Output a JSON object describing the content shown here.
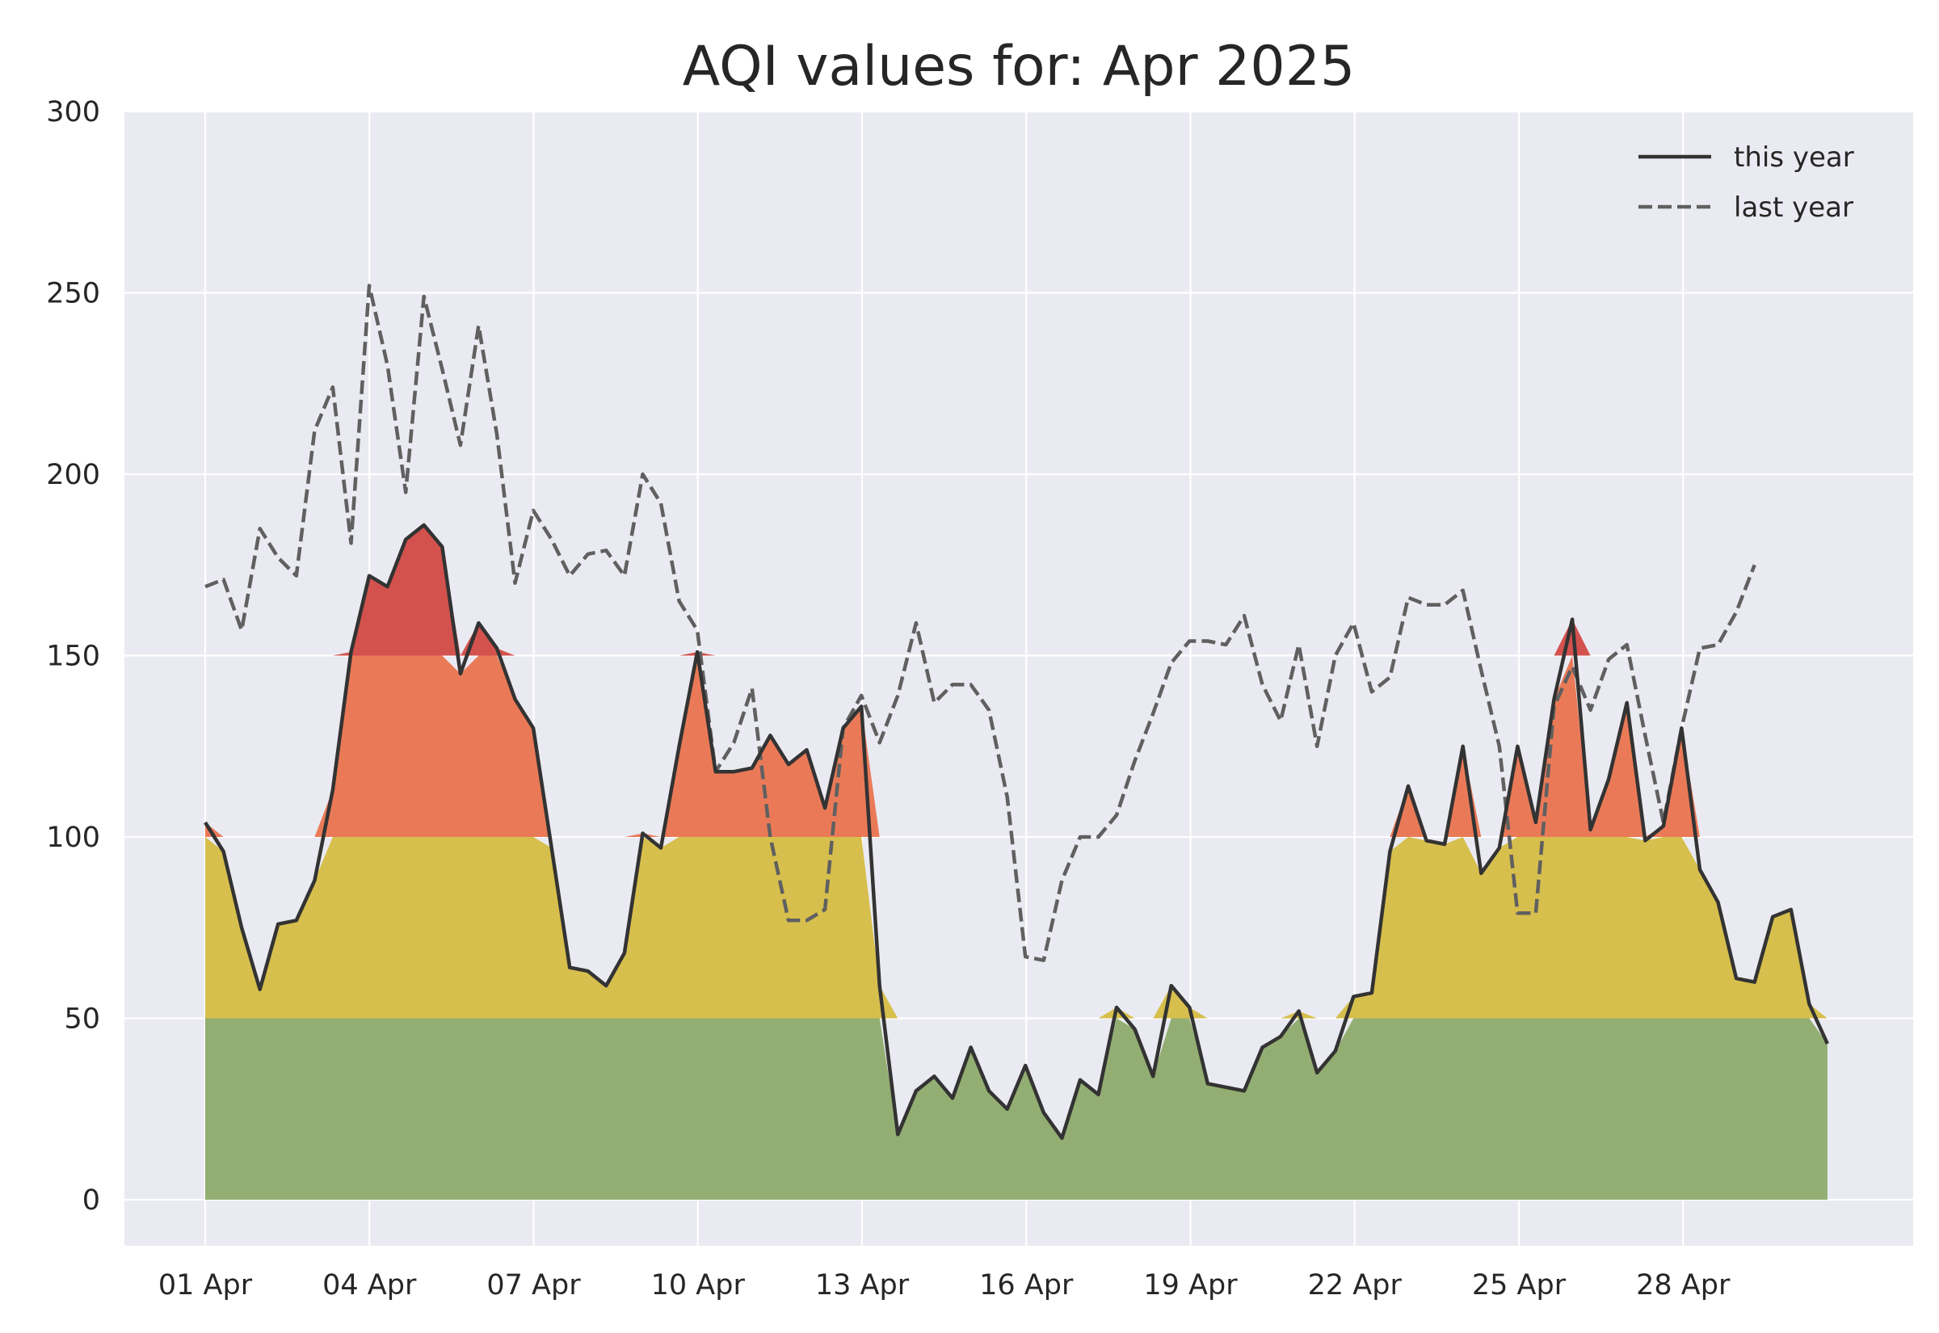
{
  "chart_data": {
    "type": "area",
    "title": "AQI values for: Apr 2025",
    "xlabel": "",
    "ylabel": "",
    "ylim": [
      -12,
      300
    ],
    "grid": true,
    "legend_position": "top-right",
    "x_ticks": [
      "01 Apr",
      "04 Apr",
      "07 Apr",
      "10 Apr",
      "13 Apr",
      "16 Apr",
      "19 Apr",
      "22 Apr",
      "25 Apr",
      "28 Apr"
    ],
    "y_ticks": [
      "0",
      "50",
      "100",
      "150",
      "200",
      "250",
      "300"
    ],
    "x_start": "2025-04-01",
    "x_step_days": 0.333,
    "aqi_bands": [
      {
        "from": 0,
        "to": 50,
        "color": "#93ae72"
      },
      {
        "from": 50,
        "to": 100,
        "color": "#d7bf4d"
      },
      {
        "from": 100,
        "to": 150,
        "color": "#ea7a57"
      },
      {
        "from": 150,
        "to": 200,
        "color": "#d3524e"
      }
    ],
    "series": [
      {
        "name": "this year",
        "color": "#333333",
        "dash": "solid",
        "values": [
          104,
          96,
          75,
          58,
          76,
          77,
          88,
          113,
          151,
          172,
          169,
          182,
          186,
          180,
          145,
          159,
          152,
          138,
          130,
          97,
          64,
          63,
          59,
          68,
          101,
          97,
          125,
          151,
          118,
          118,
          119,
          128,
          120,
          124,
          108,
          130,
          136,
          59,
          18,
          30,
          34,
          28,
          42,
          30,
          25,
          37,
          24,
          17,
          33,
          29,
          53,
          47,
          34,
          59,
          53,
          32,
          31,
          30,
          42,
          45,
          52,
          35,
          41,
          56,
          57,
          96,
          114,
          99,
          98,
          125,
          90,
          97,
          125,
          104,
          138,
          160,
          102,
          116,
          137,
          99,
          103,
          130,
          91,
          82,
          61,
          60,
          78,
          80,
          54,
          43
        ]
      },
      {
        "name": "last year",
        "color": "#606060",
        "dash": "dashed",
        "values": [
          169,
          171,
          157,
          185,
          177,
          172,
          212,
          224,
          181,
          252,
          230,
          195,
          249,
          229,
          208,
          241,
          211,
          170,
          190,
          182,
          172,
          178,
          179,
          172,
          200,
          192,
          165,
          157,
          118,
          126,
          141,
          100,
          77,
          77,
          80,
          130,
          139,
          126,
          139,
          159,
          137,
          142,
          142,
          135,
          111,
          67,
          66,
          88,
          100,
          100,
          106,
          121,
          134,
          148,
          154,
          154,
          153,
          161,
          142,
          132,
          153,
          125,
          150,
          159,
          140,
          144,
          166,
          164,
          164,
          168,
          146,
          125,
          79,
          79,
          136,
          147,
          135,
          149,
          153,
          128,
          104,
          130,
          152,
          153,
          162,
          175
        ]
      }
    ]
  }
}
